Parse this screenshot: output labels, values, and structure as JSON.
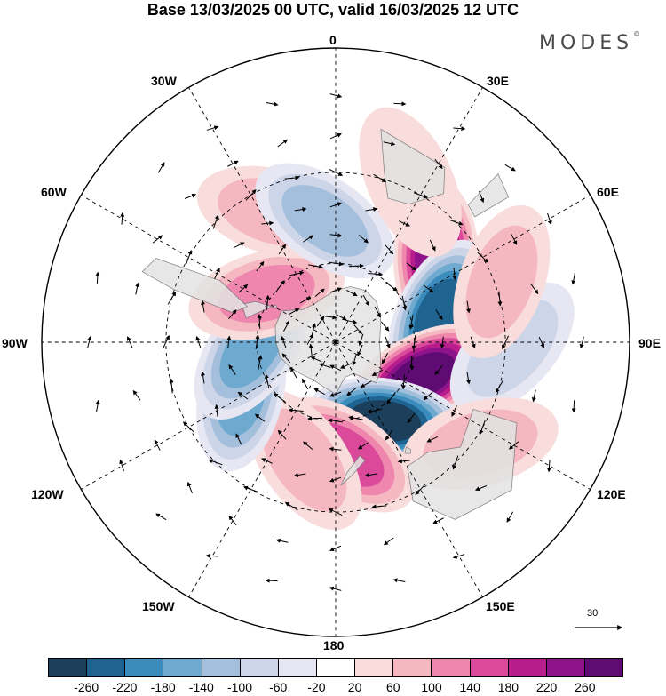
{
  "header": {
    "title": "Base 13/03/2025 00 UTC, valid 16/03/2025 12 UTC",
    "brand": "MODES",
    "brand_mark": "©"
  },
  "map": {
    "projection": "south-polar-stereographic",
    "longitude_labels": {
      "lon0": "0",
      "lon30e": "30E",
      "lon60e": "60E",
      "lon90e": "90E",
      "lon120e": "120E",
      "lon150e": "150E",
      "lon180": "180",
      "lon150w": "150W",
      "lon120w": "120W",
      "lon90w": "90W",
      "lon60w": "60W",
      "lon30w": "30W"
    },
    "reference_vector": {
      "label": "30"
    },
    "land_color": "#e3e3e3",
    "coast_color": "#777777",
    "grid_color": "#000000",
    "anomaly_centers": [
      {
        "lon": 50,
        "lat": -42,
        "value": 260
      },
      {
        "lon": 75,
        "lat": -50,
        "value": -240
      },
      {
        "lon": 112,
        "lat": -55,
        "value": 270
      },
      {
        "lon": 148,
        "lat": -55,
        "value": -270
      },
      {
        "lon": 175,
        "lat": -48,
        "value": 150
      },
      {
        "lon": -165,
        "lat": -45,
        "value": 70
      },
      {
        "lon": -118,
        "lat": -50,
        "value": -150
      },
      {
        "lon": -95,
        "lat": -58,
        "value": -150
      },
      {
        "lon": -55,
        "lat": -58,
        "value": 110
      },
      {
        "lon": -25,
        "lat": -38,
        "value": 100
      },
      {
        "lon": -5,
        "lat": -45,
        "value": -110
      },
      {
        "lon": 25,
        "lat": -28,
        "value": 50
      },
      {
        "lon": 92,
        "lat": -28,
        "value": -80
      },
      {
        "lon": 70,
        "lat": -28,
        "value": 90
      },
      {
        "lon": 125,
        "lat": -28,
        "value": 70
      }
    ]
  },
  "legend": {
    "ticks": [
      "-260",
      "-220",
      "-180",
      "-140",
      "-100",
      "-60",
      "-20",
      "20",
      "60",
      "100",
      "140",
      "180",
      "220",
      "260"
    ],
    "colors": [
      "#1c3f5c",
      "#1f6391",
      "#3b8bbd",
      "#6ea9cf",
      "#a4bfdc",
      "#cdd5e9",
      "#e7e7f3",
      "#ffffff",
      "#f9dcdc",
      "#f5b8c1",
      "#ee86ae",
      "#db4a9a",
      "#b81d8c",
      "#8e128a",
      "#5e0c73"
    ]
  }
}
